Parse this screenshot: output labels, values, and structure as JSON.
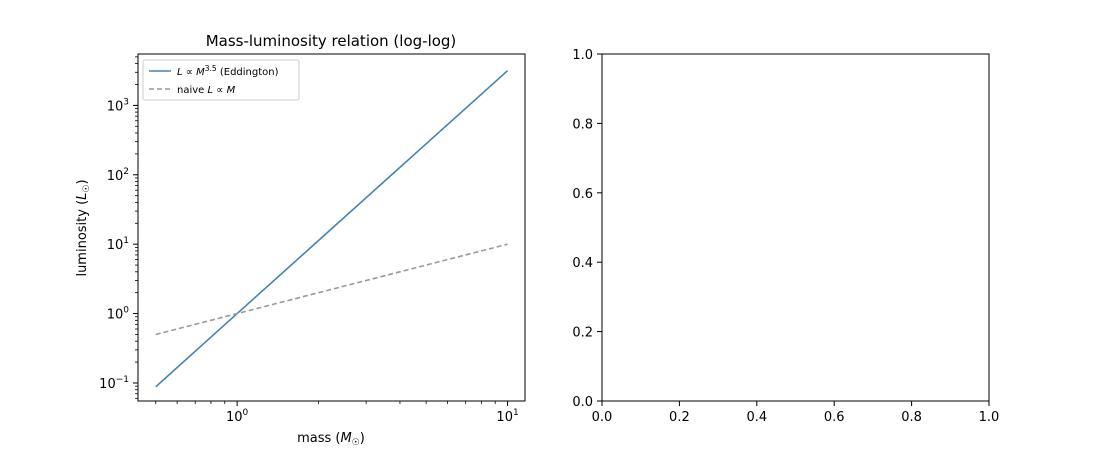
{
  "chart_data": [
    {
      "type": "line",
      "title": "Mass-luminosity relation (log-log)",
      "xlabel": "mass (M☉)",
      "ylabel": "luminosity (L☉)",
      "xscale": "log",
      "yscale": "log",
      "xlim": [
        0.43,
        11.6
      ],
      "ylim": [
        0.055,
        5500
      ],
      "x_ticks": [
        {
          "value": 1,
          "base": "10",
          "exp": "0"
        },
        {
          "value": 10,
          "base": "10",
          "exp": "1"
        }
      ],
      "y_ticks": [
        {
          "value": 0.1,
          "base": "10",
          "exp": "−1"
        },
        {
          "value": 1,
          "base": "10",
          "exp": "0"
        },
        {
          "value": 10,
          "base": "10",
          "exp": "1"
        },
        {
          "value": 100,
          "base": "10",
          "exp": "2"
        },
        {
          "value": 1000,
          "base": "10",
          "exp": "3"
        }
      ],
      "grid": false,
      "legend_position": "top-left",
      "series": [
        {
          "name": "L ∝ M^3.5 (Eddington)",
          "legend_parts": {
            "lhs": "L ∝ M",
            "sup": "3.5",
            "rest": " (Eddington)"
          },
          "color": "#4682b4",
          "style": "solid",
          "x": [
            0.5,
            1,
            2,
            5,
            10
          ],
          "y": [
            0.088,
            1,
            11.3,
            279.5,
            3162.3
          ]
        },
        {
          "name": "naive L ∝ M",
          "legend_parts": {
            "lhs": "naive L ∝ M",
            "sup": "",
            "rest": ""
          },
          "color": "#999999",
          "style": "dashed",
          "x": [
            0.5,
            1,
            2,
            5,
            10
          ],
          "y": [
            0.5,
            1,
            2,
            5,
            10
          ]
        }
      ]
    },
    {
      "type": "line",
      "title": "",
      "xlabel": "",
      "ylabel": "",
      "xlim": [
        0,
        1
      ],
      "ylim": [
        0,
        1
      ],
      "x_ticks": [
        "0.0",
        "0.2",
        "0.4",
        "0.6",
        "0.8",
        "1.0"
      ],
      "y_ticks": [
        "0.0",
        "0.2",
        "0.4",
        "0.6",
        "0.8",
        "1.0"
      ],
      "grid": false,
      "series": []
    }
  ]
}
